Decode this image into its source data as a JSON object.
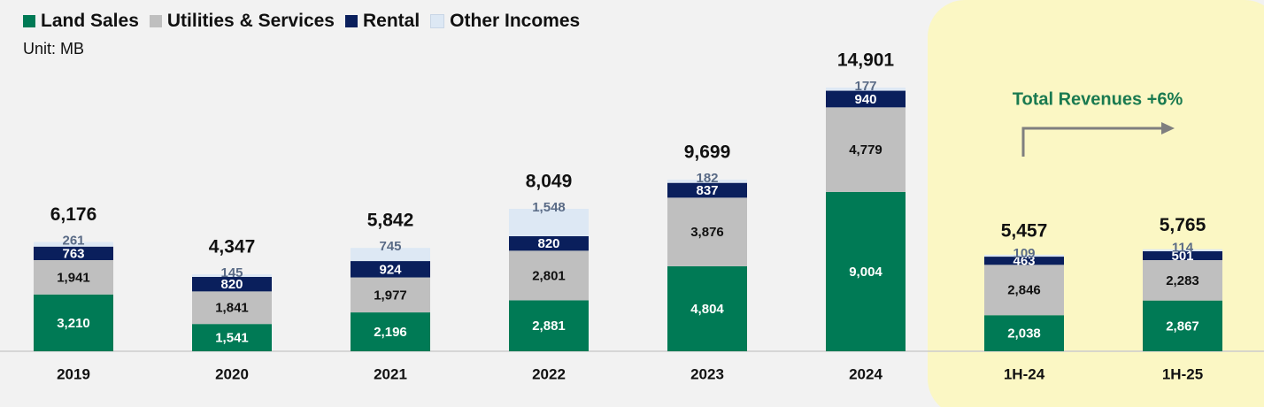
{
  "legend": {
    "items": [
      {
        "label": "Land Sales",
        "color": "#007a55"
      },
      {
        "label": "Utilities & Services",
        "color": "#bfbfbf"
      },
      {
        "label": "Rental",
        "color": "#0a1f5c"
      },
      {
        "label": "Other Incomes",
        "color": "#dde8f4"
      }
    ]
  },
  "unit_label": "Unit: MB",
  "annotation": "Total Revenues +6%",
  "colors": {
    "background": "#f2f2f2",
    "highlight": "#fbf7c4",
    "accent_text": "#1a7a50",
    "arrow": "#7f7f7f"
  },
  "chart_data": {
    "type": "bar",
    "stacked": true,
    "categories": [
      "2019",
      "2020",
      "2021",
      "2022",
      "2023",
      "2024",
      "1H-24",
      "1H-25"
    ],
    "series": [
      {
        "name": "Land Sales",
        "values": [
          3210,
          1541,
          2196,
          2881,
          4804,
          9004,
          2038,
          2867
        ],
        "labels": [
          "3,210",
          "1,541",
          "2,196",
          "2,881",
          "4,804",
          "9,004",
          "2,038",
          "2,867"
        ]
      },
      {
        "name": "Utilities & Services",
        "values": [
          1941,
          1841,
          1977,
          2801,
          3876,
          4779,
          2846,
          2283
        ],
        "labels": [
          "1,941",
          "1,841",
          "1,977",
          "2,801",
          "3,876",
          "4,779",
          "2,846",
          "2,283"
        ]
      },
      {
        "name": "Rental",
        "values": [
          763,
          820,
          924,
          820,
          837,
          940,
          463,
          501
        ],
        "labels": [
          "763",
          "820",
          "924",
          "820",
          "837",
          "940",
          "463",
          "501"
        ]
      },
      {
        "name": "Other Incomes",
        "values": [
          261,
          145,
          745,
          1548,
          182,
          177,
          109,
          114
        ],
        "labels": [
          "261",
          "145",
          "745",
          "1,548",
          "182",
          "177",
          "109",
          "114"
        ]
      }
    ],
    "totals": [
      6176,
      4347,
      5842,
      8049,
      9699,
      14901,
      5457,
      5765
    ],
    "total_labels": [
      "6,176",
      "4,347",
      "5,842",
      "8,049",
      "9,699",
      "14,901",
      "5,457",
      "5,765"
    ],
    "highlighted_categories": [
      "1H-24",
      "1H-25"
    ],
    "legend_position": "top-left",
    "grid": false
  }
}
